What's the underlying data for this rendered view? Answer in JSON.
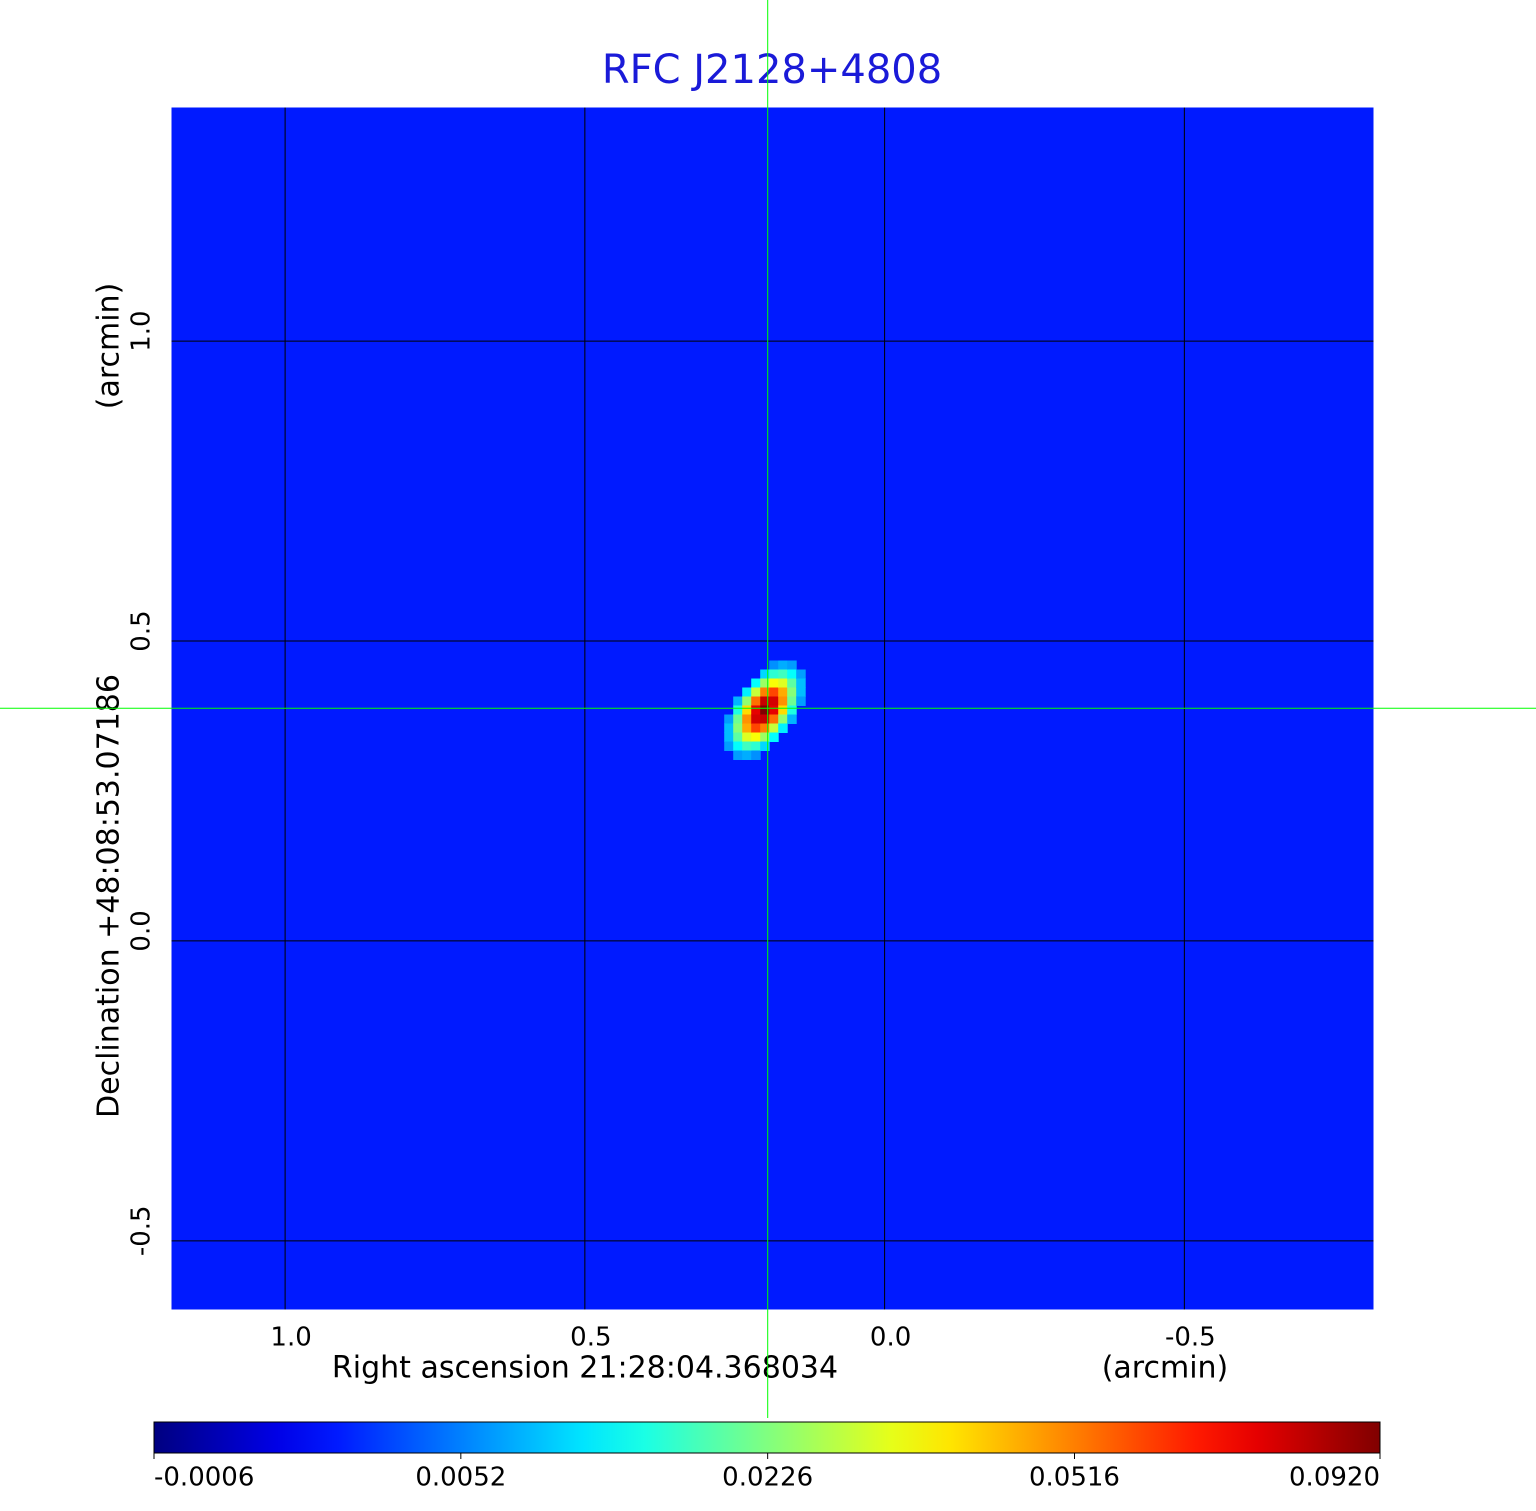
{
  "chart_data": {
    "type": "image",
    "title": "RFC J2128+4808",
    "x_label": "Right ascension  21:28:04.368034",
    "x_unit": "(arcmin)",
    "y_label": "Declination  +48:08:53.07186",
    "y_unit": "(arcmin)",
    "xlim": [
      1.192,
      -0.818
    ],
    "xticks": [
      {
        "value": 1,
        "label": "1.0"
      },
      0.5,
      {
        "value": 0,
        "label": "0.0"
      },
      -0.5
    ],
    "ylim": [
      -0.617,
      1.392
    ],
    "yticks": [
      -0.5,
      {
        "value": 0,
        "label": "0.0"
      },
      0.5,
      {
        "value": 1,
        "label": "1.0"
      }
    ],
    "grid": true,
    "colormap": "jet",
    "color_scale": "sqrt",
    "clim": [
      -0.0006,
      0.092
    ],
    "colorbar_ticks": [
      -0.0006,
      0.0052,
      0.0226,
      0.0516,
      {
        "value": 0.092,
        "label": "0.0920"
      }
    ],
    "background_level": 0.0015,
    "source": {
      "x": 0.2,
      "y": 0.385,
      "peak": 0.092
    },
    "crosshair": {
      "x": 0.195,
      "y": 0.388,
      "color": "#00ff00"
    }
  }
}
